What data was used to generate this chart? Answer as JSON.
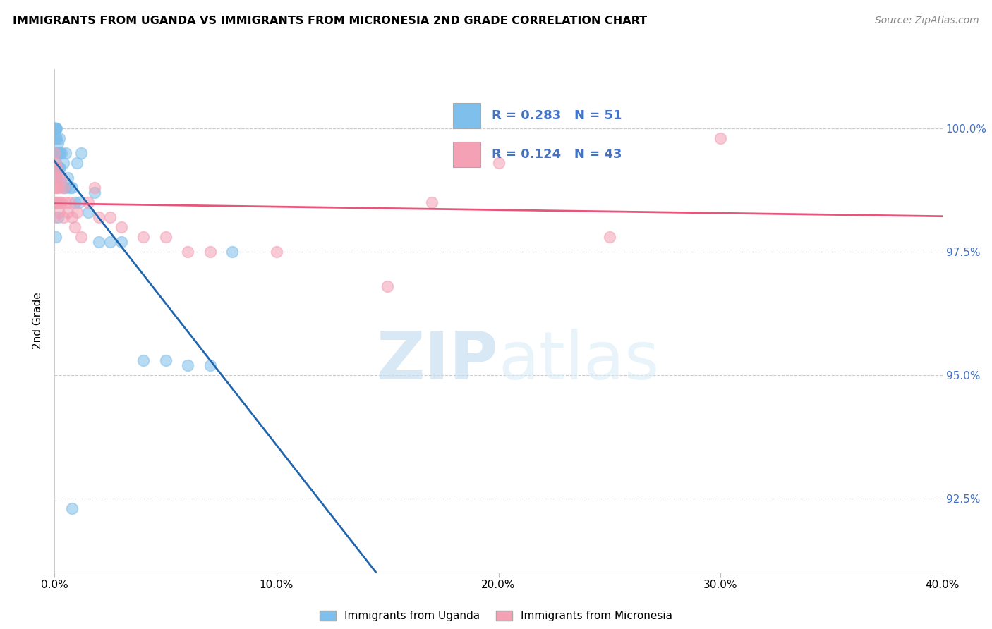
{
  "title": "IMMIGRANTS FROM UGANDA VS IMMIGRANTS FROM MICRONESIA 2ND GRADE CORRELATION CHART",
  "source": "Source: ZipAtlas.com",
  "ylabel": "2nd Grade",
  "watermark_zip": "ZIP",
  "watermark_atlas": "atlas",
  "legend_label_blue": "Immigrants from Uganda",
  "legend_label_pink": "Immigrants from Micronesia",
  "R_blue": 0.283,
  "N_blue": 51,
  "R_pink": 0.124,
  "N_pink": 43,
  "x_min": 0.0,
  "x_max": 40.0,
  "y_min": 91.0,
  "y_max": 101.2,
  "y_ticks": [
    92.5,
    95.0,
    97.5,
    100.0
  ],
  "x_ticks": [
    0.0,
    10.0,
    20.0,
    30.0,
    40.0
  ],
  "color_blue": "#7fbfeb",
  "color_pink": "#f4a0b5",
  "trendline_blue": "#2166ac",
  "trendline_pink": "#e8557a",
  "uganda_x": [
    0.0,
    0.0,
    0.0,
    0.0,
    0.0,
    0.0,
    0.05,
    0.05,
    0.05,
    0.05,
    0.05,
    0.05,
    0.1,
    0.1,
    0.1,
    0.1,
    0.1,
    0.15,
    0.15,
    0.15,
    0.2,
    0.2,
    0.2,
    0.25,
    0.25,
    0.3,
    0.3,
    0.4,
    0.4,
    0.5,
    0.5,
    0.6,
    0.7,
    0.8,
    0.9,
    1.0,
    1.1,
    1.2,
    1.5,
    1.8,
    2.0,
    2.5,
    3.0,
    4.0,
    5.0,
    6.0,
    7.0,
    8.0,
    0.05,
    0.15,
    0.8
  ],
  "uganda_y": [
    100.0,
    100.0,
    100.0,
    100.0,
    100.0,
    99.8,
    100.0,
    100.0,
    100.0,
    99.8,
    99.5,
    99.3,
    100.0,
    99.8,
    99.5,
    99.2,
    99.0,
    99.7,
    99.5,
    99.2,
    99.8,
    99.5,
    99.2,
    99.5,
    99.2,
    99.5,
    99.0,
    99.3,
    98.8,
    99.5,
    98.8,
    99.0,
    98.8,
    98.8,
    98.5,
    99.3,
    98.5,
    99.5,
    98.3,
    98.7,
    97.7,
    97.7,
    97.7,
    95.3,
    95.3,
    95.2,
    95.2,
    97.5,
    97.8,
    98.2,
    92.3
  ],
  "micronesia_x": [
    0.0,
    0.0,
    0.0,
    0.0,
    0.0,
    0.05,
    0.05,
    0.05,
    0.05,
    0.1,
    0.1,
    0.1,
    0.15,
    0.15,
    0.2,
    0.2,
    0.25,
    0.3,
    0.3,
    0.4,
    0.4,
    0.5,
    0.6,
    0.7,
    0.8,
    0.9,
    1.0,
    1.2,
    1.5,
    1.8,
    2.0,
    2.5,
    3.0,
    4.0,
    5.0,
    6.0,
    7.0,
    10.0,
    15.0,
    20.0,
    25.0,
    30.0,
    17.0
  ],
  "micronesia_y": [
    99.5,
    99.2,
    98.8,
    98.5,
    98.2,
    99.3,
    99.0,
    98.8,
    98.5,
    99.2,
    98.8,
    98.5,
    99.0,
    98.5,
    98.8,
    98.3,
    98.5,
    99.0,
    98.5,
    98.8,
    98.2,
    98.5,
    98.3,
    98.5,
    98.2,
    98.0,
    98.3,
    97.8,
    98.5,
    98.8,
    98.2,
    98.2,
    98.0,
    97.8,
    97.8,
    97.5,
    97.5,
    97.5,
    96.8,
    99.3,
    97.8,
    99.8,
    98.5
  ]
}
